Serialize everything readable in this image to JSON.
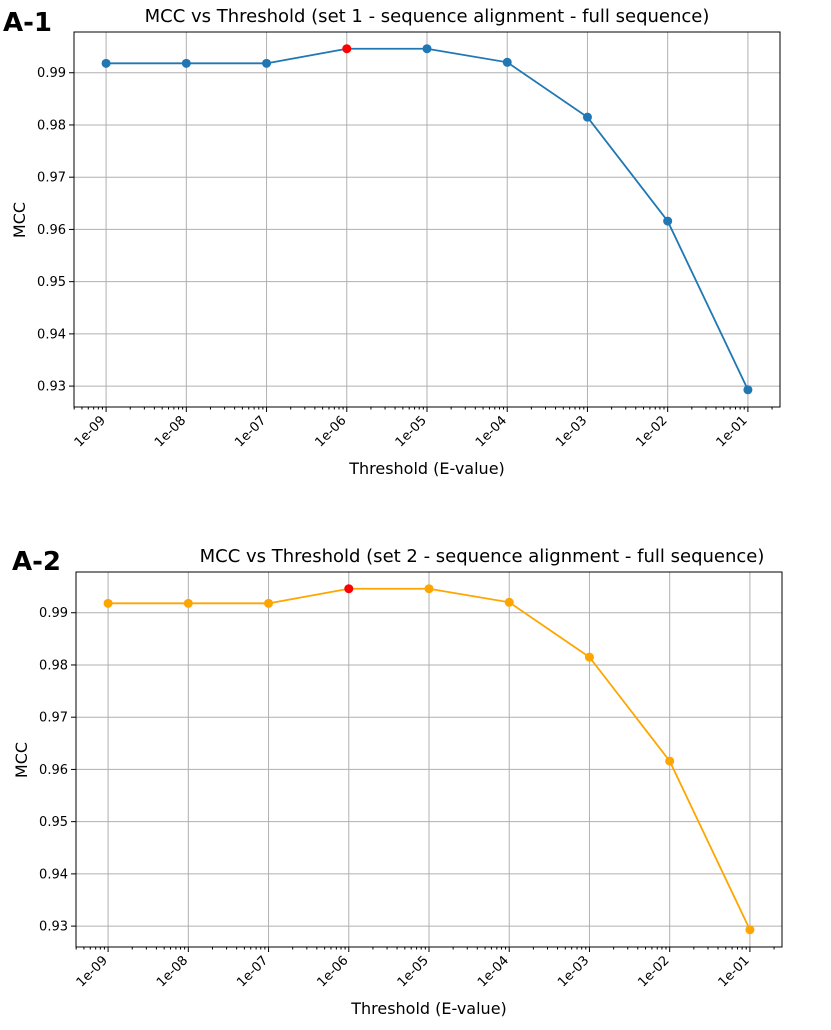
{
  "chart_data": [
    {
      "type": "line",
      "panel_label": "A-1",
      "title": "MCC vs Threshold (set 1 - sequence alignment - full sequence)",
      "xlabel": "Threshold (E-value)",
      "ylabel": "MCC",
      "x_scale": "log",
      "x": [
        1e-09,
        1e-08,
        1e-07,
        1e-06,
        1e-05,
        0.0001,
        0.001,
        0.01,
        0.1
      ],
      "x_tick_labels": [
        "1e-09",
        "1e-08",
        "1e-07",
        "1e-06",
        "1e-05",
        "1e-04",
        "1e-03",
        "1e-02",
        "1e-01"
      ],
      "y": [
        0.9918,
        0.9918,
        0.9918,
        0.9946,
        0.9946,
        0.992,
        0.9815,
        0.9616,
        0.9293
      ],
      "y_ticks": [
        0.93,
        0.94,
        0.95,
        0.96,
        0.97,
        0.98,
        0.99
      ],
      "y_tick_labels": [
        "0.93",
        "0.94",
        "0.95",
        "0.96",
        "0.97",
        "0.98",
        "0.99"
      ],
      "ylim": [
        0.926,
        0.9978
      ],
      "series_color": "#1f77b4",
      "highlight_index": 3,
      "highlight_color": "#ff0000",
      "grid": true
    },
    {
      "type": "line",
      "panel_label": "A-2",
      "title": "MCC vs Threshold (set 2 - sequence alignment - full sequence)",
      "xlabel": "Threshold (E-value)",
      "ylabel": "MCC",
      "x_scale": "log",
      "x": [
        1e-09,
        1e-08,
        1e-07,
        1e-06,
        1e-05,
        0.0001,
        0.001,
        0.01,
        0.1
      ],
      "x_tick_labels": [
        "1e-09",
        "1e-08",
        "1e-07",
        "1e-06",
        "1e-05",
        "1e-04",
        "1e-03",
        "1e-02",
        "1e-01"
      ],
      "y": [
        0.9918,
        0.9918,
        0.9918,
        0.9946,
        0.9946,
        0.992,
        0.9815,
        0.9616,
        0.9293
      ],
      "y_ticks": [
        0.93,
        0.94,
        0.95,
        0.96,
        0.97,
        0.98,
        0.99
      ],
      "y_tick_labels": [
        "0.93",
        "0.94",
        "0.95",
        "0.96",
        "0.97",
        "0.98",
        "0.99"
      ],
      "ylim": [
        0.926,
        0.9978
      ],
      "series_color": "#ffa500",
      "highlight_index": 3,
      "highlight_color": "#ff0000",
      "grid": true
    }
  ]
}
